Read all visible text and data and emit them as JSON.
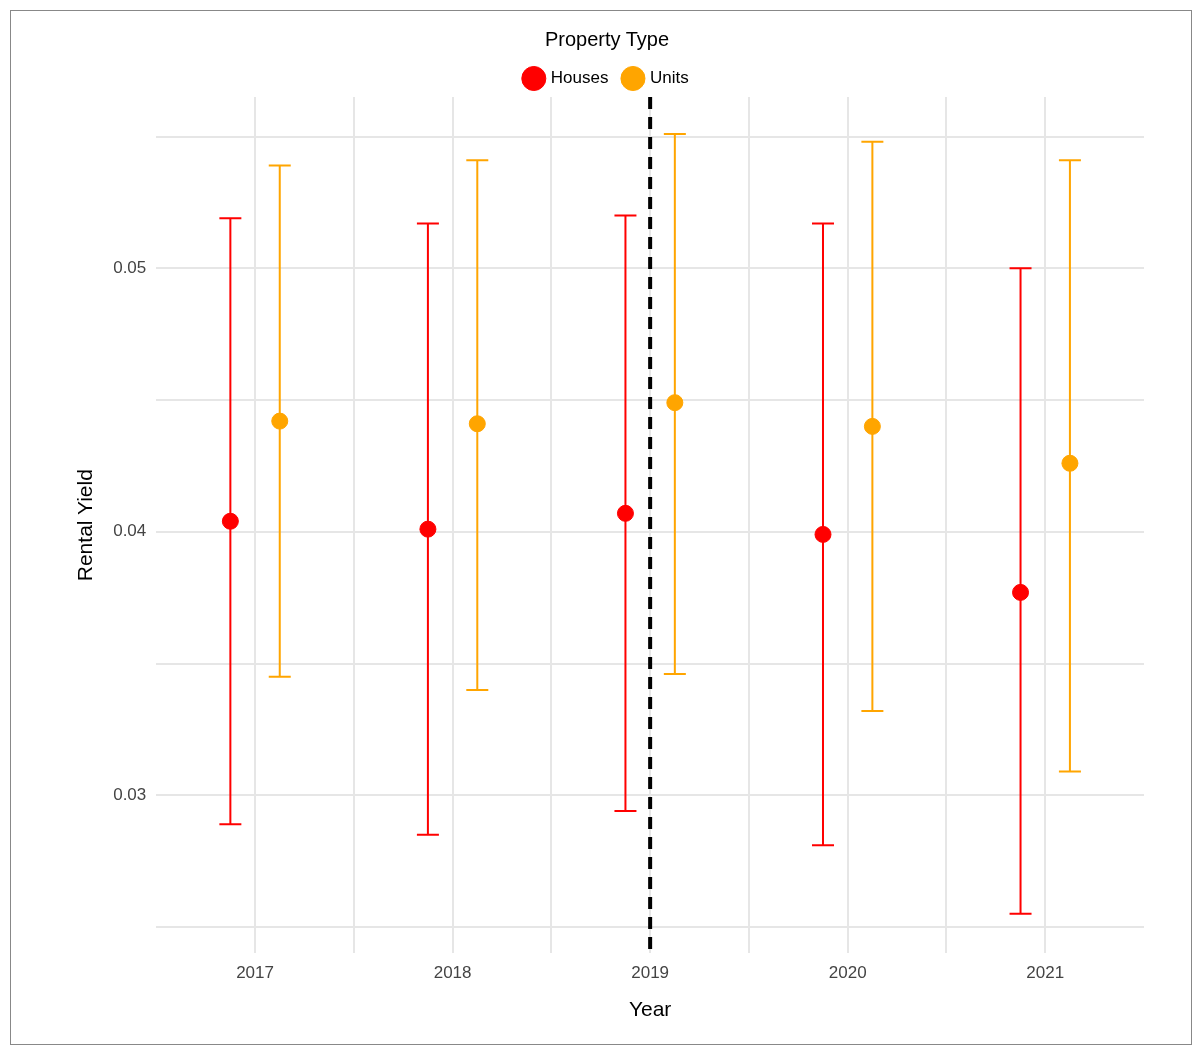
{
  "chart_data": {
    "type": "scatter",
    "xlabel": "Year",
    "ylabel": "Rental Yield",
    "legend_title": "Property Type",
    "legend": "top",
    "marker": "circle",
    "grid": true,
    "xlim": [
      2016.5,
      2021.5
    ],
    "xticks": [
      2017,
      {
        "value": 2017.5,
        "label": null
      },
      2018,
      {
        "value": 2018.5,
        "label": null
      },
      2019,
      {
        "value": 2019.5,
        "label": null
      },
      2020,
      {
        "value": 2020.5,
        "label": null
      },
      2021
    ],
    "ylim": [
      0.024,
      0.0565
    ],
    "yticks": [
      {
        "value": 0.025,
        "label": null
      },
      0.03,
      {
        "value": 0.035,
        "label": null
      },
      0.04,
      {
        "value": 0.045,
        "label": null
      },
      0.05,
      {
        "value": 0.055,
        "label": null
      }
    ],
    "ref_lines": [
      {
        "axis": "x",
        "value": 2019,
        "color": "#000000",
        "line_style": "dashed"
      }
    ],
    "series": [
      {
        "name": "Houses",
        "color": "#ff0000",
        "x": [
          2016.875,
          2017.875,
          2018.875,
          2019.875,
          2020.875
        ],
        "values": [
          0.0404,
          0.0401,
          0.0407,
          0.0399,
          0.0377
        ],
        "errors": [
          [
            0.0289,
            0.0519
          ],
          [
            0.0285,
            0.0517
          ],
          [
            0.0294,
            0.052
          ],
          [
            0.0281,
            0.0517
          ],
          [
            0.0255,
            0.05
          ]
        ]
      },
      {
        "name": "Units",
        "color": "#ffa500",
        "x": [
          2017.125,
          2018.125,
          2019.125,
          2020.125,
          2021.125
        ],
        "values": [
          0.0442,
          0.0441,
          0.0449,
          0.044,
          0.0426
        ],
        "errors": [
          [
            0.0345,
            0.0539
          ],
          [
            0.034,
            0.0541
          ],
          [
            0.0346,
            0.0551
          ],
          [
            0.0332,
            0.0548
          ],
          [
            0.0309,
            0.0541
          ]
        ]
      }
    ]
  }
}
